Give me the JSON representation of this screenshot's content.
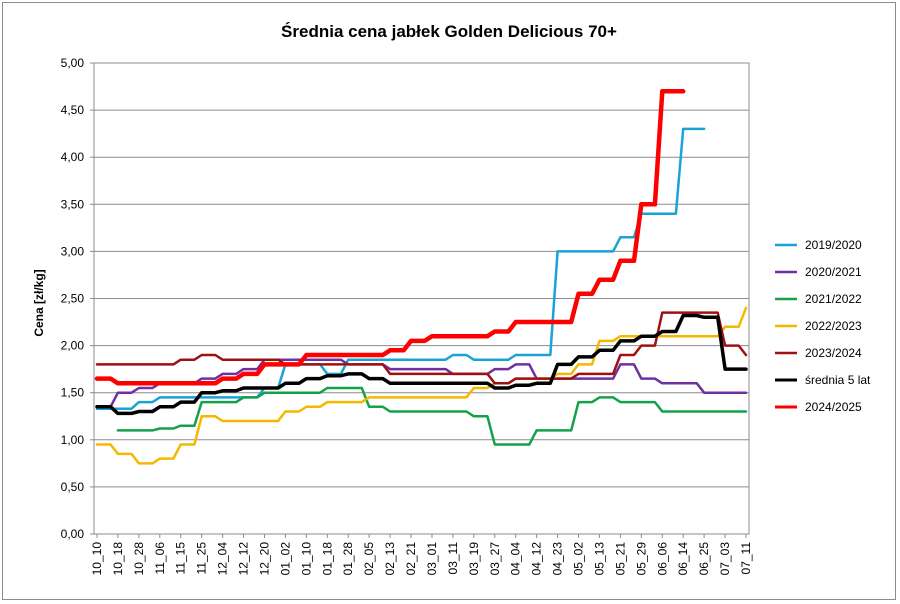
{
  "chart_data": {
    "type": "line",
    "title": "Średnia cena jabłek Golden Delicious 70+",
    "xlabel": "",
    "ylabel": "Cena [zł/kg]",
    "ylim": [
      0,
      5
    ],
    "y_ticks": [
      "0,00",
      "0,50",
      "1,00",
      "1,50",
      "2,00",
      "2,50",
      "3,00",
      "3,50",
      "4,00",
      "4,50",
      "5,00"
    ],
    "grid": "horizontal",
    "legend_position": "right",
    "x": [
      "10_10",
      "10_18",
      "10_28",
      "11_06",
      "11_15",
      "11_25",
      "12_04",
      "12_12",
      "12_20",
      "01_02",
      "01_10",
      "01_18",
      "01_28",
      "02_05",
      "02_13",
      "02_21",
      "03_01",
      "03_11",
      "03_19",
      "03_27",
      "04_04",
      "04_12",
      "04_23",
      "05_02",
      "05_13",
      "05_21",
      "05_29",
      "06_06",
      "06_14",
      "06_25",
      "07_03",
      "07_11"
    ],
    "series": [
      {
        "name": "2019/2020",
        "color": "#1aa3d6",
        "width": 2.5,
        "values": [
          1.33,
          1.33,
          1.4,
          1.45,
          1.45,
          1.45,
          1.45,
          1.45,
          1.55,
          1.8,
          1.8,
          1.7,
          1.85,
          1.85,
          1.85,
          1.85,
          1.85,
          1.9,
          1.85,
          1.85,
          1.9,
          1.9,
          3.0,
          3.0,
          3.0,
          3.15,
          3.4,
          3.4,
          4.3,
          4.3,
          null,
          null
        ]
      },
      {
        "name": "2020/2021",
        "color": "#7030a0",
        "width": 2.5,
        "values": [
          1.35,
          1.5,
          1.55,
          1.6,
          1.6,
          1.65,
          1.7,
          1.75,
          1.85,
          1.85,
          1.85,
          1.85,
          1.8,
          1.8,
          1.75,
          1.75,
          1.75,
          1.7,
          1.7,
          1.75,
          1.8,
          1.65,
          1.65,
          1.65,
          1.65,
          1.8,
          1.65,
          1.6,
          1.6,
          1.5,
          1.5,
          1.5
        ]
      },
      {
        "name": "2021/2022",
        "color": "#13a24a",
        "width": 2.5,
        "values": [
          null,
          1.1,
          1.1,
          1.12,
          1.15,
          1.4,
          1.4,
          1.45,
          1.5,
          1.5,
          1.5,
          1.55,
          1.55,
          1.35,
          1.3,
          1.3,
          1.3,
          1.3,
          1.25,
          0.95,
          0.95,
          1.1,
          1.1,
          1.4,
          1.45,
          1.4,
          1.4,
          1.3,
          1.3,
          1.3,
          1.3,
          1.3
        ]
      },
      {
        "name": "2022/2023",
        "color": "#f5b800",
        "width": 2.5,
        "values": [
          0.95,
          0.85,
          0.75,
          0.8,
          0.95,
          1.25,
          1.2,
          1.2,
          1.2,
          1.3,
          1.35,
          1.4,
          1.4,
          1.45,
          1.45,
          1.45,
          1.45,
          1.45,
          1.55,
          1.6,
          1.65,
          1.65,
          1.7,
          1.8,
          2.05,
          2.1,
          2.1,
          2.1,
          2.1,
          2.1,
          2.2,
          2.4
        ]
      },
      {
        "name": "2023/2024",
        "color": "#a01010",
        "width": 2.5,
        "values": [
          1.8,
          1.8,
          1.8,
          1.8,
          1.85,
          1.9,
          1.85,
          1.85,
          1.85,
          1.8,
          1.8,
          1.8,
          1.8,
          1.8,
          1.7,
          1.7,
          1.7,
          1.7,
          1.7,
          1.6,
          1.65,
          1.65,
          1.65,
          1.7,
          1.7,
          1.9,
          2.0,
          2.35,
          2.35,
          2.35,
          2.0,
          1.9
        ]
      },
      {
        "name": "średnia 5 lat",
        "color": "#000000",
        "width": 3.5,
        "values": [
          1.35,
          1.28,
          1.3,
          1.35,
          1.4,
          1.5,
          1.52,
          1.55,
          1.55,
          1.6,
          1.65,
          1.68,
          1.7,
          1.65,
          1.6,
          1.6,
          1.6,
          1.6,
          1.6,
          1.55,
          1.58,
          1.6,
          1.8,
          1.88,
          1.95,
          2.05,
          2.1,
          2.15,
          2.32,
          2.3,
          1.75,
          1.75
        ]
      },
      {
        "name": "2024/2025",
        "color": "#ff0000",
        "width": 4.5,
        "values": [
          1.65,
          1.6,
          1.6,
          1.6,
          1.6,
          1.6,
          1.65,
          1.7,
          1.8,
          1.8,
          1.9,
          1.9,
          1.9,
          1.9,
          1.95,
          2.05,
          2.1,
          2.1,
          2.1,
          2.15,
          2.25,
          2.25,
          2.25,
          2.55,
          2.7,
          2.9,
          3.5,
          4.7,
          4.7,
          null,
          null,
          null
        ]
      }
    ]
  }
}
